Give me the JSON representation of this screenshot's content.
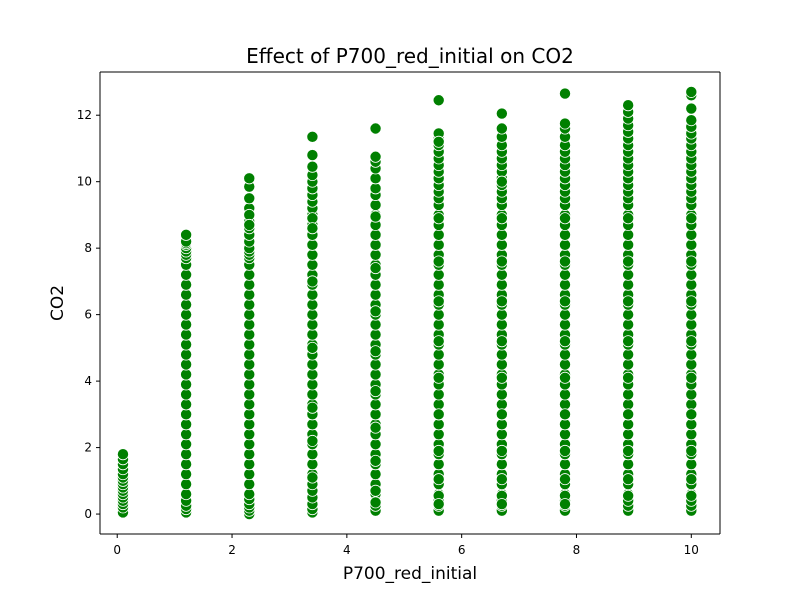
{
  "chart_data": {
    "type": "scatter",
    "title": "Effect of P700_red_initial on CO2",
    "xlabel": "P700_red_initial",
    "ylabel": "CO2",
    "xlim": [
      -0.3,
      10.5
    ],
    "ylim": [
      -0.6,
      13.3
    ],
    "xticks": [
      0,
      2,
      4,
      6,
      8,
      10
    ],
    "yticks": [
      0,
      2,
      4,
      6,
      8,
      10,
      12
    ],
    "grid": false,
    "marker_color": "#008000",
    "series": [
      {
        "x": [
          0.1,
          0.1,
          0.1,
          0.1,
          0.1,
          0.1,
          0.1,
          0.1,
          0.1,
          0.1,
          0.1,
          0.1,
          0.1,
          0.1,
          0.1,
          0.1,
          1.2,
          1.2,
          1.2,
          1.2,
          1.2,
          1.2,
          1.2,
          1.2,
          1.2,
          1.2,
          1.2,
          1.2,
          1.2,
          1.2,
          1.2,
          1.2,
          1.2,
          1.2,
          1.2,
          1.2,
          1.2,
          1.2,
          1.2,
          1.2,
          1.2,
          1.2,
          1.2,
          1.2,
          1.2,
          1.2,
          1.2,
          1.2,
          1.2,
          1.2,
          1.2,
          1.2,
          2.3,
          2.3,
          2.3,
          2.3,
          2.3,
          2.3,
          2.3,
          2.3,
          2.3,
          2.3,
          2.3,
          2.3,
          2.3,
          2.3,
          2.3,
          2.3,
          2.3,
          2.3,
          2.3,
          2.3,
          2.3,
          2.3,
          2.3,
          2.3,
          2.3,
          2.3,
          2.3,
          2.3,
          2.3,
          2.3,
          2.3,
          2.3,
          2.3,
          2.3,
          2.3,
          2.3,
          2.3,
          2.3,
          2.3,
          2.3,
          2.3,
          2.3,
          2.3,
          2.3,
          3.4,
          3.4,
          3.4,
          3.4,
          3.4,
          3.4,
          3.4,
          3.4,
          3.4,
          3.4,
          3.4,
          3.4,
          3.4,
          3.4,
          3.4,
          3.4,
          3.4,
          3.4,
          3.4,
          3.4,
          3.4,
          3.4,
          3.4,
          3.4,
          3.4,
          3.4,
          3.4,
          3.4,
          3.4,
          3.4,
          3.4,
          3.4,
          3.4,
          3.4,
          3.4,
          3.4,
          3.4,
          3.4,
          3.4,
          3.4,
          3.4,
          3.4,
          3.4,
          3.4,
          3.4,
          3.4,
          3.4,
          3.4,
          3.4,
          4.5,
          4.5,
          4.5,
          4.5,
          4.5,
          4.5,
          4.5,
          4.5,
          4.5,
          4.5,
          4.5,
          4.5,
          4.5,
          4.5,
          4.5,
          4.5,
          4.5,
          4.5,
          4.5,
          4.5,
          4.5,
          4.5,
          4.5,
          4.5,
          4.5,
          4.5,
          4.5,
          4.5,
          4.5,
          4.5,
          4.5,
          4.5,
          4.5,
          4.5,
          4.5,
          4.5,
          4.5,
          4.5,
          4.5,
          4.5,
          4.5,
          4.5,
          4.5,
          4.5,
          4.5,
          4.5,
          4.5,
          4.5,
          4.5,
          5.6,
          5.6,
          5.6,
          5.6,
          5.6,
          5.6,
          5.6,
          5.6,
          5.6,
          5.6,
          5.6,
          5.6,
          5.6,
          5.6,
          5.6,
          5.6,
          5.6,
          5.6,
          5.6,
          5.6,
          5.6,
          5.6,
          5.6,
          5.6,
          5.6,
          5.6,
          5.6,
          5.6,
          5.6,
          5.6,
          5.6,
          5.6,
          5.6,
          5.6,
          5.6,
          5.6,
          5.6,
          5.6,
          5.6,
          5.6,
          5.6,
          5.6,
          5.6,
          5.6,
          5.6,
          5.6,
          5.6,
          5.6,
          5.6,
          5.6,
          5.6,
          5.6,
          5.6,
          5.6,
          5.6,
          5.6,
          6.7,
          6.7,
          6.7,
          6.7,
          6.7,
          6.7,
          6.7,
          6.7,
          6.7,
          6.7,
          6.7,
          6.7,
          6.7,
          6.7,
          6.7,
          6.7,
          6.7,
          6.7,
          6.7,
          6.7,
          6.7,
          6.7,
          6.7,
          6.7,
          6.7,
          6.7,
          6.7,
          6.7,
          6.7,
          6.7,
          6.7,
          6.7,
          6.7,
          6.7,
          6.7,
          6.7,
          6.7,
          6.7,
          6.7,
          6.7,
          6.7,
          6.7,
          6.7,
          6.7,
          6.7,
          6.7,
          6.7,
          6.7,
          6.7,
          6.7,
          6.7,
          6.7,
          6.7,
          6.7,
          6.7,
          6.7,
          7.8,
          7.8,
          7.8,
          7.8,
          7.8,
          7.8,
          7.8,
          7.8,
          7.8,
          7.8,
          7.8,
          7.8,
          7.8,
          7.8,
          7.8,
          7.8,
          7.8,
          7.8,
          7.8,
          7.8,
          7.8,
          7.8,
          7.8,
          7.8,
          7.8,
          7.8,
          7.8,
          7.8,
          7.8,
          7.8,
          7.8,
          7.8,
          7.8,
          7.8,
          7.8,
          7.8,
          7.8,
          7.8,
          7.8,
          7.8,
          7.8,
          7.8,
          7.8,
          7.8,
          7.8,
          7.8,
          7.8,
          7.8,
          7.8,
          7.8,
          7.8,
          7.8,
          7.8,
          7.8,
          7.8,
          7.8,
          8.9,
          8.9,
          8.9,
          8.9,
          8.9,
          8.9,
          8.9,
          8.9,
          8.9,
          8.9,
          8.9,
          8.9,
          8.9,
          8.9,
          8.9,
          8.9,
          8.9,
          8.9,
          8.9,
          8.9,
          8.9,
          8.9,
          8.9,
          8.9,
          8.9,
          8.9,
          8.9,
          8.9,
          8.9,
          8.9,
          8.9,
          8.9,
          8.9,
          8.9,
          8.9,
          8.9,
          8.9,
          8.9,
          8.9,
          8.9,
          8.9,
          8.9,
          8.9,
          8.9,
          8.9,
          8.9,
          8.9,
          8.9,
          8.9,
          8.9,
          8.9,
          8.9,
          8.9,
          8.9,
          8.9,
          8.9,
          8.9,
          10.0,
          10.0,
          10.0,
          10.0,
          10.0,
          10.0,
          10.0,
          10.0,
          10.0,
          10.0,
          10.0,
          10.0,
          10.0,
          10.0,
          10.0,
          10.0,
          10.0,
          10.0,
          10.0,
          10.0,
          10.0,
          10.0,
          10.0,
          10.0,
          10.0,
          10.0,
          10.0,
          10.0,
          10.0,
          10.0,
          10.0,
          10.0,
          10.0,
          10.0,
          10.0,
          10.0,
          10.0,
          10.0,
          10.0,
          10.0,
          10.0,
          10.0,
          10.0,
          10.0,
          10.0,
          10.0,
          10.0,
          10.0,
          10.0,
          10.0,
          10.0,
          10.0,
          10.0,
          10.0,
          10.0,
          10.0,
          10.0,
          10.0
        ],
        "y": [
          0.05,
          0.2,
          0.3,
          0.4,
          0.5,
          0.6,
          0.7,
          0.8,
          0.9,
          1.0,
          1.1,
          1.2,
          1.35,
          1.5,
          1.65,
          1.8,
          0.05,
          0.15,
          0.25,
          0.4,
          0.6,
          0.9,
          1.2,
          1.5,
          1.8,
          2.1,
          2.4,
          2.7,
          3.0,
          3.3,
          3.6,
          3.9,
          4.2,
          4.5,
          4.8,
          5.1,
          5.4,
          5.7,
          6.0,
          6.3,
          6.6,
          6.9,
          7.2,
          7.5,
          7.7,
          7.8,
          7.9,
          8.0,
          8.1,
          8.15,
          8.2,
          8.4,
          0.0,
          0.1,
          0.2,
          0.3,
          0.45,
          0.6,
          0.9,
          1.2,
          1.5,
          1.8,
          2.1,
          2.4,
          2.7,
          3.0,
          3.3,
          3.6,
          3.9,
          4.2,
          4.5,
          4.8,
          5.1,
          5.4,
          5.7,
          6.0,
          6.3,
          6.6,
          6.9,
          7.2,
          7.5,
          7.7,
          7.8,
          7.9,
          8.0,
          8.2,
          8.4,
          8.6,
          8.8,
          9.0,
          9.2,
          9.5,
          9.85,
          10.1,
          9.0,
          8.7,
          0.05,
          0.15,
          0.3,
          0.5,
          0.7,
          0.9,
          1.2,
          1.5,
          1.8,
          2.1,
          2.4,
          2.7,
          3.0,
          3.3,
          3.6,
          3.9,
          4.2,
          4.5,
          4.8,
          5.1,
          5.4,
          5.7,
          6.0,
          6.3,
          6.6,
          6.9,
          7.2,
          7.5,
          7.8,
          8.1,
          8.4,
          8.7,
          9.0,
          9.2,
          9.4,
          9.6,
          9.8,
          10.0,
          10.2,
          10.45,
          10.8,
          11.35,
          8.9,
          8.6,
          7.0,
          5.0,
          3.2,
          2.2,
          1.1,
          0.1,
          0.25,
          0.4,
          0.6,
          0.9,
          1.2,
          1.5,
          1.8,
          2.1,
          2.4,
          2.7,
          3.0,
          3.3,
          3.6,
          3.9,
          4.2,
          4.5,
          4.8,
          5.1,
          5.4,
          5.7,
          6.0,
          6.3,
          6.6,
          6.9,
          7.2,
          7.5,
          7.8,
          8.1,
          8.4,
          8.7,
          9.0,
          9.3,
          9.6,
          9.8,
          10.1,
          10.4,
          10.6,
          10.75,
          11.6,
          8.95,
          7.4,
          6.1,
          4.9,
          3.7,
          2.6,
          1.6,
          0.7,
          0.35,
          0.1,
          0.25,
          0.4,
          0.6,
          0.9,
          1.2,
          1.5,
          1.8,
          2.1,
          2.4,
          2.7,
          3.0,
          3.3,
          3.6,
          3.9,
          4.2,
          4.5,
          4.8,
          5.1,
          5.4,
          5.7,
          6.0,
          6.3,
          6.6,
          6.9,
          7.2,
          7.5,
          7.8,
          8.1,
          8.4,
          8.7,
          9.0,
          9.3,
          9.5,
          9.7,
          9.9,
          10.1,
          10.3,
          10.5,
          10.7,
          10.9,
          11.1,
          11.3,
          11.45,
          12.45,
          8.9,
          7.6,
          6.4,
          5.2,
          4.1,
          3.0,
          1.9,
          1.05,
          0.55,
          0.3,
          11.2,
          0.1,
          0.25,
          0.4,
          0.6,
          0.9,
          1.2,
          1.5,
          1.8,
          2.1,
          2.4,
          2.7,
          3.0,
          3.3,
          3.6,
          3.9,
          4.2,
          4.5,
          4.8,
          5.1,
          5.4,
          5.7,
          6.0,
          6.3,
          6.6,
          6.9,
          7.2,
          7.5,
          7.8,
          8.1,
          8.4,
          8.7,
          9.0,
          9.3,
          9.5,
          9.7,
          9.9,
          10.1,
          10.3,
          10.5,
          10.7,
          10.9,
          11.1,
          11.35,
          11.6,
          12.05,
          8.9,
          7.6,
          6.4,
          5.2,
          4.1,
          3.0,
          1.9,
          1.05,
          0.55,
          0.3,
          10.0,
          0.1,
          0.25,
          0.4,
          0.6,
          0.9,
          1.2,
          1.5,
          1.8,
          2.1,
          2.4,
          2.7,
          3.0,
          3.3,
          3.6,
          3.9,
          4.2,
          4.5,
          4.8,
          5.1,
          5.4,
          5.7,
          6.0,
          6.3,
          6.6,
          6.9,
          7.2,
          7.5,
          7.8,
          8.1,
          8.4,
          8.7,
          9.0,
          9.3,
          9.5,
          9.7,
          9.9,
          10.1,
          10.3,
          10.5,
          10.7,
          10.9,
          11.1,
          11.35,
          11.6,
          11.75,
          12.65,
          8.9,
          7.6,
          6.4,
          5.2,
          4.1,
          3.0,
          1.9,
          1.05,
          0.55,
          0.3,
          0.1,
          0.25,
          0.4,
          0.6,
          0.9,
          1.2,
          1.5,
          1.8,
          2.1,
          2.4,
          2.7,
          3.0,
          3.3,
          3.6,
          3.9,
          4.2,
          4.5,
          4.8,
          5.1,
          5.4,
          5.7,
          6.0,
          6.3,
          6.6,
          6.9,
          7.2,
          7.5,
          7.8,
          8.1,
          8.4,
          8.7,
          9.0,
          9.3,
          9.5,
          9.7,
          9.9,
          10.1,
          10.3,
          10.5,
          10.7,
          10.9,
          11.1,
          11.3,
          11.5,
          11.7,
          11.9,
          12.1,
          12.3,
          8.9,
          7.6,
          6.4,
          5.2,
          4.1,
          3.0,
          1.9,
          1.05,
          0.55,
          0.1,
          0.25,
          0.4,
          0.6,
          0.9,
          1.2,
          1.5,
          1.8,
          2.1,
          2.4,
          2.7,
          3.0,
          3.3,
          3.6,
          3.9,
          4.2,
          4.5,
          4.8,
          5.1,
          5.4,
          5.7,
          6.0,
          6.3,
          6.6,
          6.9,
          7.2,
          7.5,
          7.8,
          8.1,
          8.4,
          8.7,
          9.0,
          9.3,
          9.5,
          9.7,
          9.9,
          10.1,
          10.3,
          10.5,
          10.7,
          10.9,
          11.1,
          11.3,
          11.45,
          11.65,
          11.85,
          12.2,
          12.6,
          12.7,
          8.9,
          7.6,
          6.4,
          5.2,
          4.1,
          3.0,
          1.9,
          1.05,
          0.55
        ]
      }
    ]
  }
}
